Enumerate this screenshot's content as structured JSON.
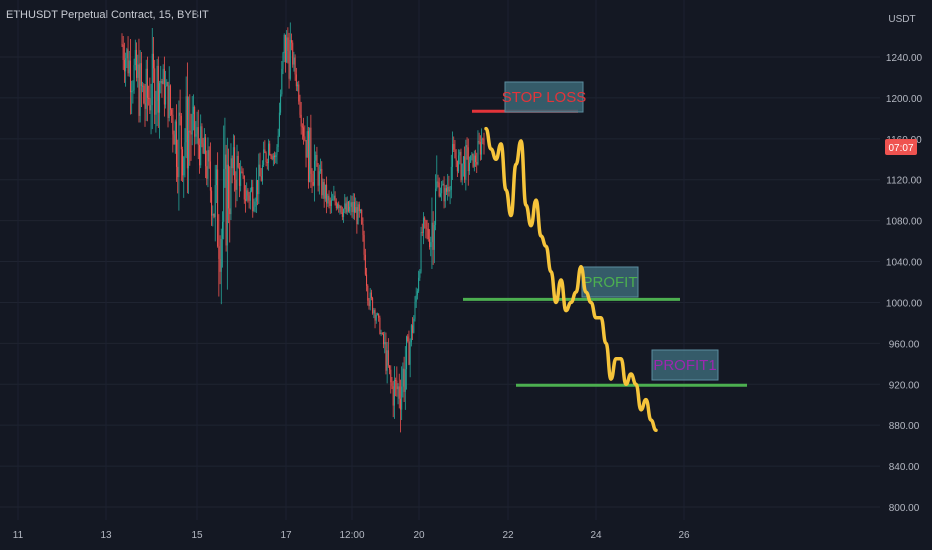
{
  "chart_data": {
    "type": "candlestick",
    "title": "ETHUSDT Perpetual Contract, 15, BYBIT",
    "currency_label": "USDT",
    "price_tag": "07:07",
    "ylim": [
      790,
      1290
    ],
    "y_ticks": [
      "1240.00",
      "1200.00",
      "1160.00",
      "1120.00",
      "1080.00",
      "1040.00",
      "1000.00",
      "960.00",
      "920.00",
      "880.00",
      "840.00",
      "800.00"
    ],
    "x_ticks": [
      "11",
      "13",
      "15",
      "17",
      "12:00",
      "20",
      "22",
      "24",
      "26"
    ],
    "price_path": [
      [
        1275,
        1230
      ],
      [
        1260,
        1205
      ],
      [
        1250,
        1180
      ],
      [
        1230,
        1160
      ],
      [
        1245,
        1180
      ],
      [
        1238,
        1200
      ],
      [
        1225,
        1170
      ],
      [
        1215,
        1120
      ],
      [
        1210,
        1110
      ],
      [
        1195,
        1150
      ],
      [
        1175,
        1135
      ],
      [
        1160,
        1110
      ],
      [
        1150,
        1030
      ],
      [
        1140,
        1015
      ],
      [
        1150,
        1100
      ],
      [
        1142,
        1120
      ],
      [
        1120,
        1090
      ],
      [
        1095,
        1120
      ],
      [
        1135,
        1110
      ],
      [
        1160,
        1150
      ],
      [
        1150,
        1130
      ],
      [
        1220,
        1275
      ],
      [
        1250,
        1240
      ],
      [
        1215,
        1190
      ],
      [
        1175,
        1120
      ],
      [
        1125,
        1145
      ],
      [
        1120,
        1105
      ],
      [
        1100,
        1085
      ],
      [
        1095,
        1110
      ],
      [
        1095,
        1080
      ],
      [
        1085,
        1100
      ],
      [
        1085,
        1075
      ],
      [
        1000,
        1010
      ],
      [
        990,
        990
      ],
      [
        970,
        945
      ],
      [
        935,
        895
      ],
      [
        885,
        945
      ],
      [
        930,
        955
      ],
      [
        980,
        1000
      ],
      [
        1060,
        1080
      ],
      [
        1030,
        1100
      ],
      [
        1120,
        1110
      ],
      [
        1090,
        1120
      ],
      [
        1150,
        1135
      ],
      [
        1120,
        1150
      ],
      [
        1135,
        1140
      ],
      [
        1130,
        1150
      ],
      [
        1160,
        1175
      ]
    ],
    "projection_path": [
      1170,
      1150,
      1140,
      1155,
      1110,
      1085,
      1135,
      1158,
      1095,
      1075,
      1100,
      1065,
      1055,
      1030,
      1000,
      1022,
      992,
      1000,
      1010,
      1035,
      1010,
      1000,
      985,
      985,
      960,
      925,
      945,
      945,
      920,
      930,
      920,
      895,
      905,
      885,
      875
    ],
    "levels": [
      {
        "label": "STOP LOSS",
        "price": 1187,
        "color": "#e3343a",
        "text_color": "#e3343a"
      },
      {
        "label": "PROFIT",
        "price": 1003,
        "color": "#4caf50",
        "text_color": "#4caf50"
      },
      {
        "label": "PROFIT1",
        "price": 919,
        "color": "#4caf50",
        "text_color": "#9c27b0"
      }
    ],
    "colors": {
      "up": "#26a69a",
      "down": "#ef5350",
      "projection": "#f6c43b",
      "box_bg": "#3b6776",
      "box_border": "#5c8ea0",
      "tag": "#ef5350"
    }
  }
}
